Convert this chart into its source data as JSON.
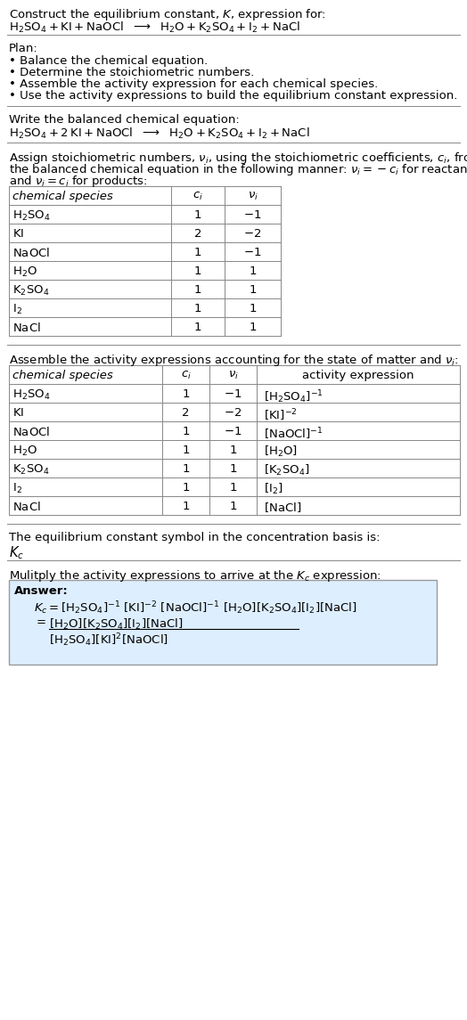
{
  "title_line1": "Construct the equilibrium constant, $K$, expression for:",
  "title_line2_parts": [
    {
      "text": "H",
      "sub": "2",
      "rest": "SO"
    },
    {
      "text": "4"
    }
  ],
  "plan_header": "Plan:",
  "plan_items": [
    "Balance the chemical equation.",
    "Determine the stoichiometric numbers.",
    "Assemble the activity expression for each chemical species.",
    "Use the activity expressions to build the equilibrium constant expression."
  ],
  "balanced_header": "Write the balanced chemical equation:",
  "stoich_header1": "Assign stoichiometric numbers, $\\nu_i$, using the stoichiometric coefficients, $c_i$, from",
  "stoich_header2": "the balanced chemical equation in the following manner: $\\nu_i = -c_i$ for reactants",
  "stoich_header3": "and $\\nu_i = c_i$ for products:",
  "table1_headers": [
    "chemical species",
    "$c_i$",
    "$\\nu_i$"
  ],
  "table1_data": [
    [
      "$\\mathregular{H_2SO_4}$",
      "1",
      "$-1$"
    ],
    [
      "$\\mathregular{KI}$",
      "2",
      "$-2$"
    ],
    [
      "$\\mathregular{NaOCl}$",
      "1",
      "$-1$"
    ],
    [
      "$\\mathregular{H_2O}$",
      "1",
      "$1$"
    ],
    [
      "$\\mathregular{K_2SO_4}$",
      "1",
      "$1$"
    ],
    [
      "$\\mathregular{I_2}$",
      "1",
      "$1$"
    ],
    [
      "$\\mathregular{NaCl}$",
      "1",
      "$1$"
    ]
  ],
  "activity_header": "Assemble the activity expressions accounting for the state of matter and $\\nu_i$:",
  "table2_headers": [
    "chemical species",
    "$c_i$",
    "$\\nu_i$",
    "activity expression"
  ],
  "table2_data": [
    [
      "$\\mathregular{H_2SO_4}$",
      "1",
      "$-1$",
      "$[\\mathregular{H_2SO_4}]^{-1}$"
    ],
    [
      "$\\mathregular{KI}$",
      "2",
      "$-2$",
      "$[\\mathregular{KI}]^{-2}$"
    ],
    [
      "$\\mathregular{NaOCl}$",
      "1",
      "$-1$",
      "$[\\mathregular{NaOCl}]^{-1}$"
    ],
    [
      "$\\mathregular{H_2O}$",
      "1",
      "$1$",
      "$[\\mathregular{H_2O}]$"
    ],
    [
      "$\\mathregular{K_2SO_4}$",
      "1",
      "$1$",
      "$[\\mathregular{K_2SO_4}]$"
    ],
    [
      "$\\mathregular{I_2}$",
      "1",
      "$1$",
      "$[\\mathregular{I_2}]$"
    ],
    [
      "$\\mathregular{NaCl}$",
      "1",
      "$1$",
      "$[\\mathregular{NaCl}]$"
    ]
  ],
  "kc_header": "The equilibrium constant symbol in the concentration basis is:",
  "kc_symbol": "$K_c$",
  "multiply_header": "Mulitply the activity expressions to arrive at the $K_c$ expression:",
  "answer_label": "Answer:",
  "bg_color": "#ffffff",
  "answer_box_color": "#ddeeff",
  "table_border_color": "#888888",
  "line_color": "#888888",
  "text_color": "#000000"
}
